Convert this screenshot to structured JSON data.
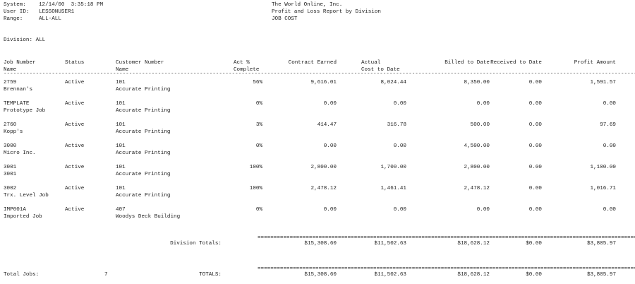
{
  "header": {
    "system_label": "System:",
    "system_value": "12/14/00  3:35:18 PM",
    "user_label": "User ID:",
    "user_value": "LESSONUSER1",
    "range_label": "Range:",
    "range_value": "ALL-ALL",
    "company": "The World Online, Inc.",
    "report_title": "Profit and Loss Report by Division",
    "module": "JOB COST",
    "division": "Division: ALL"
  },
  "columns": {
    "job_number": "Job Number",
    "job_name": "Name",
    "status": "Status",
    "customer_number": "Customer Number",
    "customer_name": "Name",
    "act_pct_1": "Act %",
    "act_pct_2": "Complete",
    "contract_earned": "Contract Earned",
    "actual_1": "Actual",
    "actual_2": "Cost to Date",
    "billed": "Billed to Date",
    "received": "Received to Date",
    "profit": "Profit Amount"
  },
  "rows": [
    {
      "job": "2759",
      "name": "Brennan's",
      "status": "Active",
      "cust": "101",
      "cust_name": "Accurate Printing",
      "pct": "56%",
      "earned": "9,616.01",
      "actual": "8,024.44",
      "billed": "8,350.00",
      "received": "0.00",
      "profit": "1,591.57"
    },
    {
      "job": "TEMPLATE",
      "name": "Prototype Job",
      "status": "Active",
      "cust": "101",
      "cust_name": "Accurate Printing",
      "pct": "0%",
      "earned": "0.00",
      "actual": "0.00",
      "billed": "0.00",
      "received": "0.00",
      "profit": "0.00"
    },
    {
      "job": "2760",
      "name": "Kopp's",
      "status": "Active",
      "cust": "101",
      "cust_name": "Accurate Printing",
      "pct": "3%",
      "earned": "414.47",
      "actual": "316.78",
      "billed": "500.00",
      "received": "0.00",
      "profit": "97.69"
    },
    {
      "job": "3000",
      "name": "Micro Inc.",
      "status": "Active",
      "cust": "101",
      "cust_name": "Accurate Printing",
      "pct": "0%",
      "earned": "0.00",
      "actual": "0.00",
      "billed": "4,500.00",
      "received": "0.00",
      "profit": "0.00"
    },
    {
      "job": "3001",
      "name": "3001",
      "status": "Active",
      "cust": "101",
      "cust_name": "Accurate Printing",
      "pct": "100%",
      "earned": "2,800.00",
      "actual": "1,700.00",
      "billed": "2,800.00",
      "received": "0.00",
      "profit": "1,100.00"
    },
    {
      "job": "3002",
      "name": "Trx. Level Job",
      "status": "Active",
      "cust": "101",
      "cust_name": "Accurate Printing",
      "pct": "100%",
      "earned": "2,478.12",
      "actual": "1,461.41",
      "billed": "2,478.12",
      "received": "0.00",
      "profit": "1,016.71"
    },
    {
      "job": "IMP001A",
      "name": "Imported Job",
      "status": "Active",
      "cust": "407",
      "cust_name": "Woodys Deck Building",
      "pct": "0%",
      "earned": "0.00",
      "actual": "0.00",
      "billed": "0.00",
      "received": "0.00",
      "profit": "0.00"
    }
  ],
  "division_totals": {
    "label": "Division Totals:",
    "earned": "$15,308.60",
    "actual": "$11,502.63",
    "billed": "$18,628.12",
    "received": "$0.00",
    "profit": "$3,805.97"
  },
  "grand_totals": {
    "jobs_label": "Total Jobs:",
    "jobs": "7",
    "label": "TOTALS:",
    "earned": "$15,308.60",
    "actual": "$11,502.63",
    "billed": "$18,628.12",
    "received": "$0.00",
    "profit": "$3,805.97"
  }
}
